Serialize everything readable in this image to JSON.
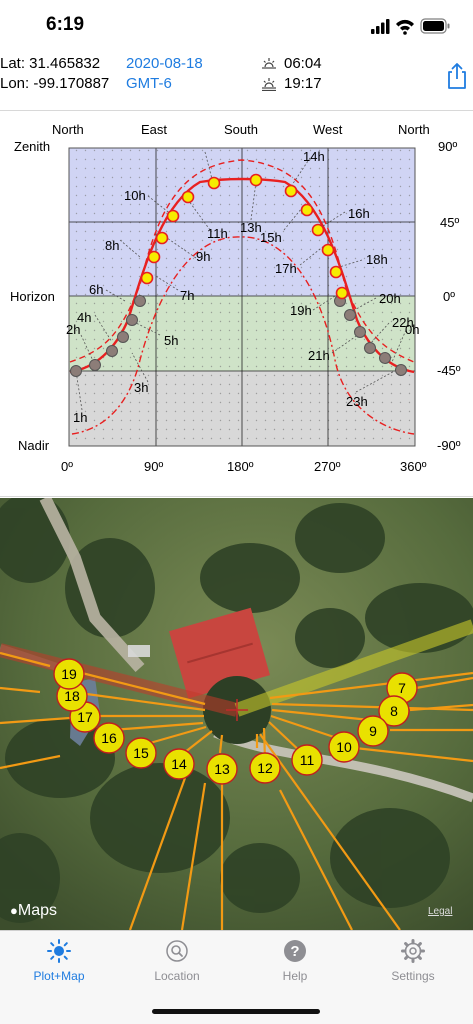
{
  "status": {
    "time": "6:19"
  },
  "header": {
    "lat": "Lat: 31.465832",
    "lon": "Lon: -99.170887",
    "date": "2020-08-18",
    "tz": "GMT-6",
    "sunrise": "06:04",
    "sunset": "19:17",
    "share_icon": "share-icon"
  },
  "plot": {
    "direction_labels": [
      "North",
      "East",
      "South",
      "West",
      "North"
    ],
    "left_labels": [
      "Zenith",
      "Horizon",
      "Nadir"
    ],
    "right_labels": [
      "90º",
      "45º",
      "0º",
      "-45º",
      "-90º"
    ],
    "bottom_labels": [
      "0º",
      "90º",
      "180º",
      "270º",
      "360º"
    ],
    "hour_labels": [
      "1h",
      "2h",
      "3h",
      "4h",
      "5h",
      "6h",
      "7h",
      "8h",
      "9h",
      "10h",
      "11h",
      "13h",
      "14h",
      "15h",
      "16h",
      "17h",
      "18h",
      "19h",
      "20h",
      "21h",
      "22h",
      "23h",
      "0h"
    ],
    "colors": {
      "sky": "#d0d4f4",
      "ground": "#cfe3c8",
      "below": "#d8d8d8",
      "sun_path": "#e82020",
      "marker": "#f6ec00"
    }
  },
  "map": {
    "hour_markers": [
      "7",
      "8",
      "9",
      "10",
      "11",
      "12",
      "13",
      "14",
      "15",
      "16",
      "17",
      "18",
      "19"
    ],
    "attribution": "Maps",
    "legal": "Legal"
  },
  "tabs": [
    {
      "label": "Plot+Map",
      "icon": "sun-icon",
      "active": true
    },
    {
      "label": "Location",
      "icon": "location-search-icon",
      "active": false
    },
    {
      "label": "Help",
      "icon": "help-icon",
      "active": false
    },
    {
      "label": "Settings",
      "icon": "gear-icon",
      "active": false
    }
  ]
}
